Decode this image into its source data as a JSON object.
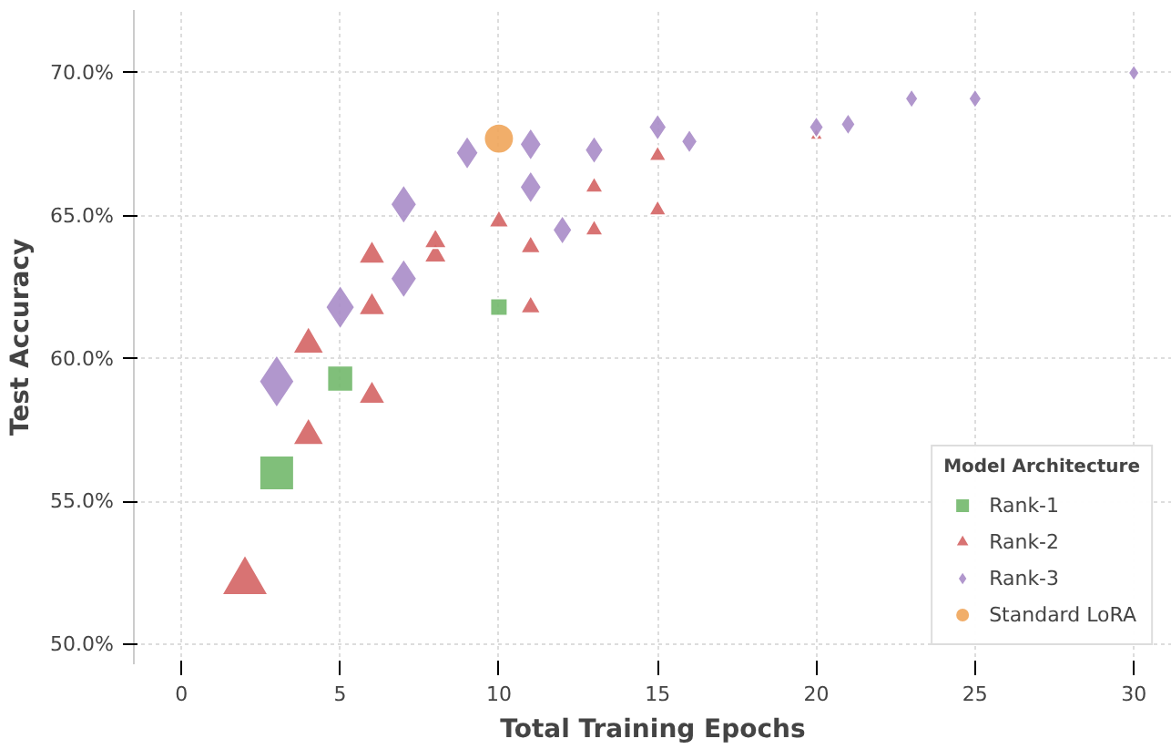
{
  "chart_data": {
    "type": "bubble",
    "xlabel": "Total Training Epochs",
    "ylabel": "Test Accuracy",
    "legend_title": "Model Architecture",
    "xlim": [
      -1.5,
      31.2
    ],
    "ylim": [
      49.3,
      72.2
    ],
    "xticks": [
      0,
      5,
      10,
      15,
      20,
      25,
      30
    ],
    "yticks": [
      {
        "value": 50,
        "label": "50.0%"
      },
      {
        "value": 55,
        "label": "55.0%"
      },
      {
        "value": 60,
        "label": "60.0%"
      },
      {
        "value": 65,
        "label": "65.0%"
      },
      {
        "value": 70,
        "label": "70.0%"
      }
    ],
    "grid": true,
    "legend": "bottom right",
    "series": [
      {
        "name": "Rank-1",
        "color": "#72b86c",
        "marker": "square",
        "x": [
          3,
          5,
          10
        ],
        "values": [
          56.0,
          59.3,
          61.8
        ],
        "sizes": [
          1,
          0.56,
          0.25
        ]
      },
      {
        "name": "Rank-2",
        "color": "#d46464",
        "marker": "triangle",
        "x": [
          2,
          4,
          4,
          6,
          6,
          6,
          8,
          8,
          10,
          11,
          11,
          13,
          13,
          15,
          15,
          20
        ],
        "values": [
          52.2,
          57.3,
          60.5,
          58.7,
          61.8,
          63.6,
          63.6,
          64.1,
          64.8,
          63.9,
          61.8,
          64.5,
          66.0,
          65.2,
          67.1,
          67.8
        ],
        "sizes": [
          0.82,
          0.38,
          0.38,
          0.28,
          0.28,
          0.28,
          0.2,
          0.2,
          0.16,
          0.16,
          0.16,
          0.13,
          0.13,
          0.12,
          0.12,
          0.07
        ]
      },
      {
        "name": "Rank-3",
        "color": "#a98cc8",
        "marker": "diamond",
        "x": [
          3,
          5,
          7,
          7,
          9,
          11,
          11,
          12,
          13,
          15,
          16,
          20,
          21,
          23,
          25,
          30
        ],
        "values": [
          59.2,
          61.8,
          62.8,
          65.4,
          67.2,
          67.5,
          66.0,
          64.5,
          67.3,
          68.1,
          67.6,
          68.1,
          68.2,
          69.1,
          69.1,
          70.0
        ],
        "sizes": [
          0.81,
          0.56,
          0.45,
          0.45,
          0.33,
          0.31,
          0.31,
          0.25,
          0.23,
          0.21,
          0.17,
          0.14,
          0.14,
          0.11,
          0.11,
          0.08
        ]
      },
      {
        "name": "Standard LoRA",
        "color": "#f0a55a",
        "marker": "circle",
        "x": [
          10
        ],
        "values": [
          67.7
        ],
        "sizes": [
          0.6
        ]
      }
    ]
  }
}
